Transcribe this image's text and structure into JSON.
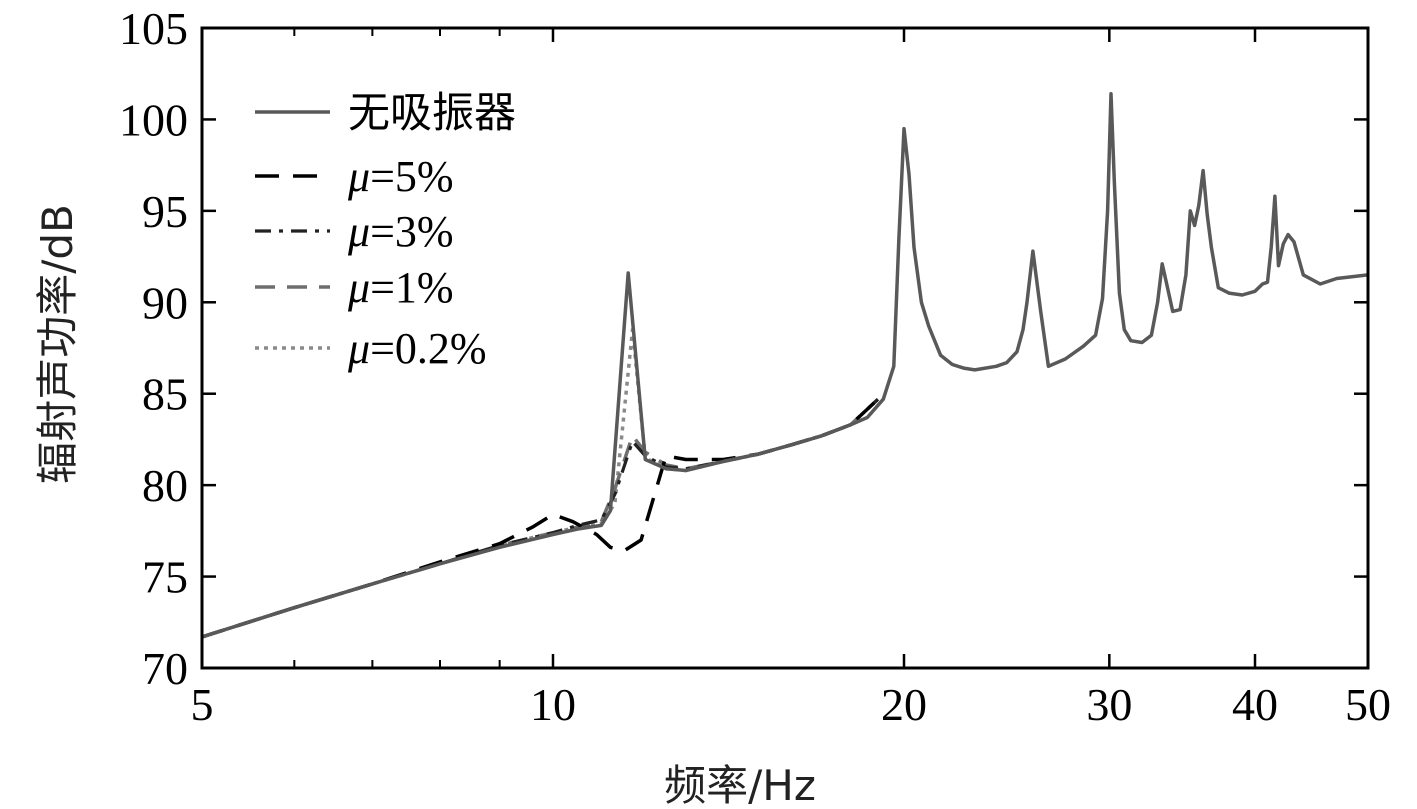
{
  "chart_data": {
    "type": "line",
    "xlabel": "频率/Hz",
    "ylabel": "辐射声功率/dB",
    "xscale": "log",
    "xlim": [
      5,
      50
    ],
    "ylim": [
      70,
      105
    ],
    "xticks": [
      5,
      10,
      20,
      30,
      40,
      50
    ],
    "yticks": [
      70,
      75,
      80,
      85,
      90,
      95,
      100,
      105
    ],
    "legend_position": "top-left",
    "grid": false,
    "series": [
      {
        "name": "无吸振器",
        "color": "#595959",
        "dash": "solid",
        "x": [
          5,
          6,
          7,
          8,
          9,
          10,
          10.5,
          11.0,
          11.2,
          11.6,
          12.0,
          12.5,
          13,
          14,
          15,
          16,
          17,
          18,
          18.6,
          19.2,
          19.6,
          19.8,
          20.0,
          20.2,
          20.4,
          20.7,
          21,
          21.5,
          22,
          22.5,
          23,
          24,
          24.5,
          25,
          25.3,
          25.5,
          25.8,
          26.2,
          26.6,
          27.5,
          28.5,
          29.2,
          29.6,
          29.9,
          30.1,
          30.3,
          30.6,
          30.9,
          31.3,
          32.0,
          32.6,
          33.0,
          33.3,
          33.6,
          34.0,
          34.5,
          34.9,
          35.2,
          35.5,
          35.8,
          36.1,
          36.4,
          36.7,
          37.2,
          38.0,
          39.0,
          40.0,
          40.6,
          41.0,
          41.3,
          41.6,
          41.9,
          42.3,
          42.7,
          43.2,
          44.0,
          45.5,
          47.0,
          50.0
        ],
        "y": [
          71.7,
          73.3,
          74.6,
          75.7,
          76.6,
          77.3,
          77.6,
          77.8,
          78.6,
          91.6,
          81.4,
          80.9,
          80.8,
          81.3,
          81.7,
          82.2,
          82.7,
          83.3,
          83.7,
          84.7,
          86.5,
          93.5,
          99.5,
          97.0,
          93.0,
          90.0,
          88.7,
          87.1,
          86.6,
          86.4,
          86.3,
          86.5,
          86.7,
          87.3,
          88.5,
          90.0,
          92.8,
          89.5,
          86.5,
          86.9,
          87.6,
          88.2,
          90.2,
          95.0,
          101.4,
          96.5,
          90.5,
          88.5,
          87.9,
          87.8,
          88.2,
          90.0,
          92.1,
          91.0,
          89.5,
          89.6,
          91.5,
          95.0,
          94.2,
          95.3,
          97.2,
          94.8,
          93.0,
          90.8,
          90.5,
          90.4,
          90.6,
          91.0,
          91.1,
          93.0,
          95.8,
          92.0,
          93.2,
          93.7,
          93.3,
          91.5,
          91.0,
          91.3,
          91.5
        ]
      },
      {
        "name": "μ=5%",
        "color": "#000000",
        "dash": "dashed",
        "x": [
          5,
          6,
          7,
          8,
          9,
          9.6,
          10.0,
          10.4,
          10.9,
          11.2,
          11.5,
          11.9,
          12.5,
          13.0,
          14,
          15,
          16,
          17,
          18,
          19
        ],
        "y": [
          71.7,
          73.3,
          74.6,
          75.8,
          76.8,
          77.7,
          78.4,
          78.0,
          77.3,
          76.6,
          76.4,
          77.0,
          81.6,
          81.4,
          81.4,
          81.7,
          82.2,
          82.7,
          83.3,
          84.7
        ]
      },
      {
        "name": "μ=3%",
        "color": "#222222",
        "dash": "dashdot",
        "x": [
          5,
          6,
          7,
          8,
          9,
          10,
          10.5,
          11.0,
          11.3,
          11.7,
          12.0,
          12.5,
          13,
          14,
          15,
          16,
          17,
          18,
          19
        ],
        "y": [
          71.7,
          73.3,
          74.6,
          75.7,
          76.7,
          77.4,
          77.8,
          78.1,
          79.5,
          82.4,
          81.6,
          81.0,
          80.9,
          81.3,
          81.7,
          82.2,
          82.7,
          83.3,
          84.7
        ]
      },
      {
        "name": "μ=1%",
        "color": "#6e6e6e",
        "dash": "longdash",
        "x": [
          5,
          6,
          7,
          8,
          9,
          10,
          10.5,
          11.0,
          11.3,
          11.7,
          12.0,
          12.5,
          13,
          14,
          15,
          16,
          17,
          18,
          19
        ],
        "y": [
          71.7,
          73.3,
          74.6,
          75.7,
          76.7,
          77.4,
          77.7,
          78.0,
          79.8,
          82.7,
          81.8,
          81.1,
          80.9,
          81.3,
          81.7,
          82.2,
          82.7,
          83.3,
          84.7
        ]
      },
      {
        "name": "μ=0.2%",
        "color": "#8a8a8a",
        "dash": "dotted",
        "x": [
          5,
          6,
          7,
          8,
          9,
          10,
          10.5,
          11.0,
          11.3,
          11.7,
          12.0,
          12.5,
          13,
          14,
          15,
          16,
          17,
          18,
          19
        ],
        "y": [
          71.7,
          73.3,
          74.6,
          75.7,
          76.7,
          77.4,
          77.7,
          77.9,
          79.0,
          88.5,
          81.5,
          80.9,
          80.8,
          81.3,
          81.7,
          82.2,
          82.7,
          83.3,
          84.7
        ]
      }
    ]
  },
  "legend": {
    "items": [
      {
        "prefix": "",
        "suffix": "无吸振器"
      },
      {
        "prefix": "μ",
        "suffix": "=5%"
      },
      {
        "prefix": "μ",
        "suffix": "=3%"
      },
      {
        "prefix": "μ",
        "suffix": "=1%"
      },
      {
        "prefix": "μ",
        "suffix": "=0.2%"
      }
    ]
  },
  "axes": {
    "x_title": "频率/Hz",
    "y_title": "辐射声功率/dB"
  }
}
